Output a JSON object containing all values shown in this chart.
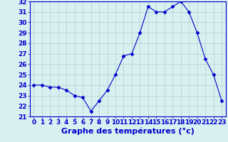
{
  "hours": [
    0,
    1,
    2,
    3,
    4,
    5,
    6,
    7,
    8,
    9,
    10,
    11,
    12,
    13,
    14,
    15,
    16,
    17,
    18,
    19,
    20,
    21,
    22,
    23
  ],
  "temps": [
    24.0,
    24.0,
    23.8,
    23.8,
    23.5,
    23.0,
    22.8,
    21.5,
    22.5,
    23.5,
    25.0,
    26.8,
    27.0,
    29.0,
    31.5,
    31.0,
    31.0,
    31.5,
    32.0,
    31.0,
    29.0,
    26.5,
    25.0,
    22.5
  ],
  "line_color": "#0000cc",
  "marker": "D",
  "marker_size": 2.5,
  "bg_color": "#d8f0f0",
  "grid_color": "#b0d0d0",
  "xlabel": "Graphe des températures (°c)",
  "xlabel_color": "#0000cc",
  "ylim": [
    21,
    32
  ],
  "yticks": [
    21,
    22,
    23,
    24,
    25,
    26,
    27,
    28,
    29,
    30,
    31,
    32
  ],
  "xticks": [
    0,
    1,
    2,
    3,
    4,
    5,
    6,
    7,
    8,
    9,
    10,
    11,
    12,
    13,
    14,
    15,
    16,
    17,
    18,
    19,
    20,
    21,
    22,
    23
  ],
  "tick_label_color": "#0000cc",
  "tick_fontsize": 6.5,
  "xlabel_fontsize": 8.0,
  "spine_color": "#0000cc"
}
